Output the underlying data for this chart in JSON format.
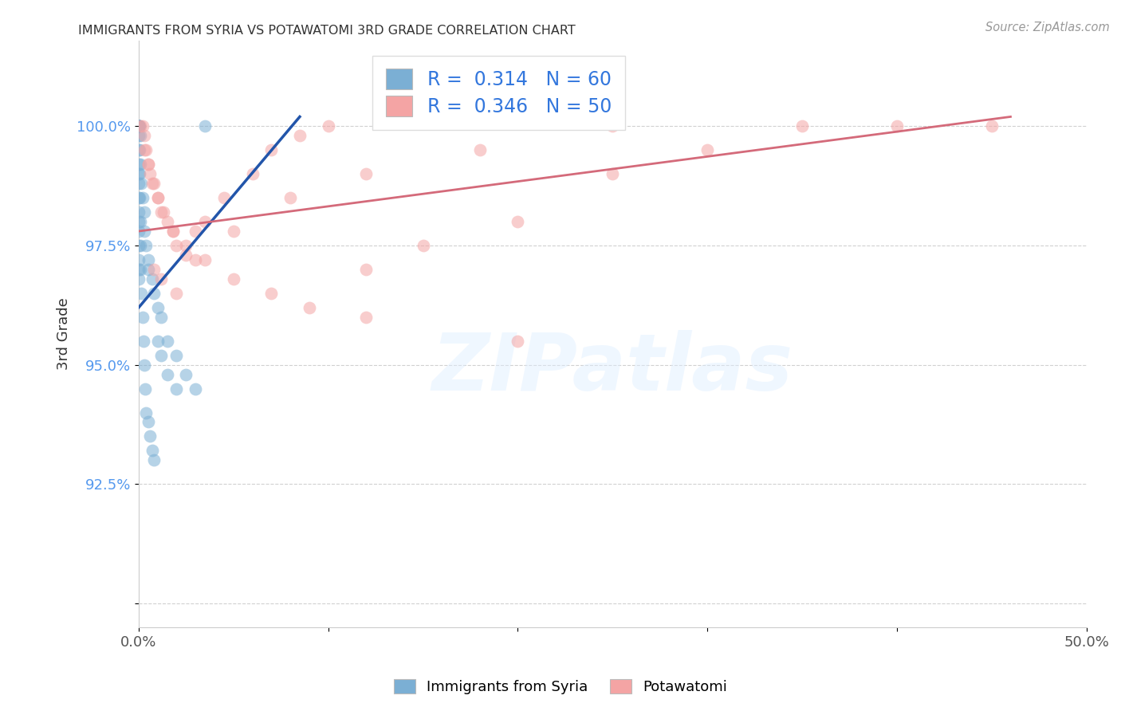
{
  "title": "IMMIGRANTS FROM SYRIA VS POTAWATOMI 3RD GRADE CORRELATION CHART",
  "source_text": "Source: ZipAtlas.com",
  "ylabel": "3rd Grade",
  "xlim": [
    0.0,
    50.0
  ],
  "ylim": [
    89.5,
    101.8
  ],
  "xticks": [
    0.0,
    10.0,
    20.0,
    30.0,
    40.0,
    50.0
  ],
  "xticklabels": [
    "0.0%",
    "",
    "",
    "",
    "",
    "50.0%"
  ],
  "yticks": [
    90.0,
    92.5,
    95.0,
    97.5,
    100.0
  ],
  "yticklabels": [
    "",
    "92.5%",
    "95.0%",
    "97.5%",
    "100.0%"
  ],
  "legend_labels": [
    "Immigrants from Syria",
    "Potawatomi"
  ],
  "legend_R": [
    0.314,
    0.346
  ],
  "legend_N": [
    60,
    50
  ],
  "blue_color": "#7BAFD4",
  "pink_color": "#F4A4A4",
  "blue_line_color": "#2255AA",
  "pink_line_color": "#D46A7A",
  "watermark": "ZIPatlas",
  "blue_scatter_x": [
    0.0,
    0.0,
    0.0,
    0.0,
    0.0,
    0.0,
    0.0,
    0.0,
    0.0,
    0.0,
    0.0,
    0.0,
    0.0,
    0.0,
    0.0,
    0.0,
    0.0,
    0.0,
    0.0,
    0.0,
    0.0,
    0.05,
    0.05,
    0.1,
    0.1,
    0.15,
    0.2,
    0.3,
    0.3,
    0.4,
    0.5,
    0.5,
    0.7,
    0.8,
    1.0,
    1.2,
    1.5,
    2.0,
    2.5,
    3.0,
    0.05,
    0.05,
    0.1,
    0.1,
    0.1,
    0.15,
    0.2,
    0.25,
    0.3,
    0.35,
    0.4,
    0.5,
    0.6,
    0.7,
    0.8,
    1.0,
    1.2,
    1.5,
    2.0,
    3.5
  ],
  "blue_scatter_y": [
    100.0,
    100.0,
    100.0,
    100.0,
    100.0,
    100.0,
    100.0,
    100.0,
    99.8,
    99.5,
    99.2,
    99.0,
    98.8,
    98.5,
    98.2,
    98.0,
    97.8,
    97.5,
    97.2,
    97.0,
    96.8,
    100.0,
    99.5,
    99.8,
    99.2,
    98.8,
    98.5,
    98.2,
    97.8,
    97.5,
    97.2,
    97.0,
    96.8,
    96.5,
    96.2,
    96.0,
    95.5,
    95.2,
    94.8,
    94.5,
    99.0,
    98.5,
    98.0,
    97.5,
    97.0,
    96.5,
    96.0,
    95.5,
    95.0,
    94.5,
    94.0,
    93.8,
    93.5,
    93.2,
    93.0,
    95.5,
    95.2,
    94.8,
    94.5,
    100.0
  ],
  "pink_scatter_x": [
    0.1,
    0.2,
    0.3,
    0.4,
    0.5,
    0.6,
    0.8,
    1.0,
    1.2,
    1.5,
    1.8,
    2.0,
    2.5,
    3.0,
    3.5,
    4.5,
    6.0,
    7.0,
    8.5,
    10.0,
    0.3,
    0.5,
    0.7,
    1.0,
    1.3,
    1.8,
    2.5,
    3.5,
    5.0,
    7.0,
    9.0,
    12.0,
    15.0,
    20.0,
    25.0,
    30.0,
    40.0,
    45.0,
    0.8,
    1.2,
    2.0,
    3.0,
    5.0,
    8.0,
    12.0,
    18.0,
    25.0,
    35.0,
    12.0,
    20.0
  ],
  "pink_scatter_y": [
    100.0,
    100.0,
    99.8,
    99.5,
    99.2,
    99.0,
    98.8,
    98.5,
    98.2,
    98.0,
    97.8,
    97.5,
    97.3,
    97.8,
    98.0,
    98.5,
    99.0,
    99.5,
    99.8,
    100.0,
    99.5,
    99.2,
    98.8,
    98.5,
    98.2,
    97.8,
    97.5,
    97.2,
    96.8,
    96.5,
    96.2,
    97.0,
    97.5,
    98.0,
    99.0,
    99.5,
    100.0,
    100.0,
    97.0,
    96.8,
    96.5,
    97.2,
    97.8,
    98.5,
    99.0,
    99.5,
    100.0,
    100.0,
    96.0,
    95.5
  ],
  "blue_line_x": [
    0.0,
    8.5
  ],
  "blue_line_y": [
    96.2,
    100.2
  ],
  "pink_line_x": [
    0.0,
    46.0
  ],
  "pink_line_y": [
    97.8,
    100.2
  ]
}
